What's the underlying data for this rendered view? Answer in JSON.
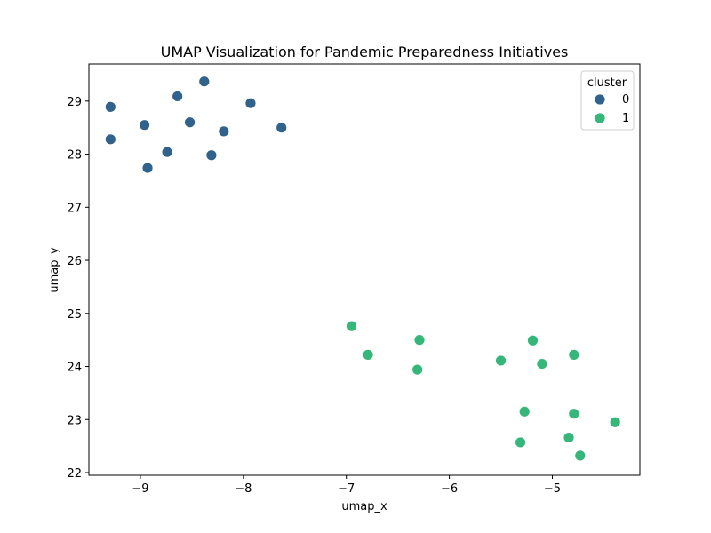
{
  "chart_data": {
    "type": "scatter",
    "title": "UMAP Visualization for Pandemic Preparedness Initiatives",
    "xlabel": "umap_x",
    "ylabel": "umap_y",
    "xlim": [
      -9.5,
      -4.15
    ],
    "ylim": [
      21.95,
      29.7
    ],
    "xticks": [
      -9,
      -8,
      -7,
      -6,
      -5
    ],
    "yticks": [
      22,
      23,
      24,
      25,
      26,
      27,
      28,
      29
    ],
    "xtick_labels": [
      "−9",
      "−8",
      "−7",
      "−6",
      "−5"
    ],
    "ytick_labels": [
      "22",
      "23",
      "24",
      "25",
      "26",
      "27",
      "28",
      "29"
    ],
    "grid": false,
    "legend": {
      "title": "cluster",
      "placement": "upper-right"
    },
    "series": [
      {
        "name": "0",
        "color": "#30628b",
        "points": [
          [
            -9.29,
            28.89
          ],
          [
            -9.29,
            28.28
          ],
          [
            -8.96,
            28.55
          ],
          [
            -8.93,
            27.74
          ],
          [
            -8.74,
            28.04
          ],
          [
            -8.64,
            29.09
          ],
          [
            -8.52,
            28.6
          ],
          [
            -8.38,
            29.37
          ],
          [
            -8.31,
            27.98
          ],
          [
            -8.19,
            28.43
          ],
          [
            -7.93,
            28.96
          ],
          [
            -7.63,
            28.5
          ]
        ]
      },
      {
        "name": "1",
        "color": "#35b779",
        "points": [
          [
            -6.95,
            24.76
          ],
          [
            -6.79,
            24.22
          ],
          [
            -6.29,
            24.5
          ],
          [
            -6.31,
            23.94
          ],
          [
            -5.5,
            24.11
          ],
          [
            -5.19,
            24.49
          ],
          [
            -5.1,
            24.05
          ],
          [
            -4.79,
            24.22
          ],
          [
            -5.27,
            23.15
          ],
          [
            -4.79,
            23.11
          ],
          [
            -4.39,
            22.95
          ],
          [
            -5.31,
            22.57
          ],
          [
            -4.84,
            22.66
          ],
          [
            -4.73,
            22.32
          ]
        ]
      }
    ]
  }
}
